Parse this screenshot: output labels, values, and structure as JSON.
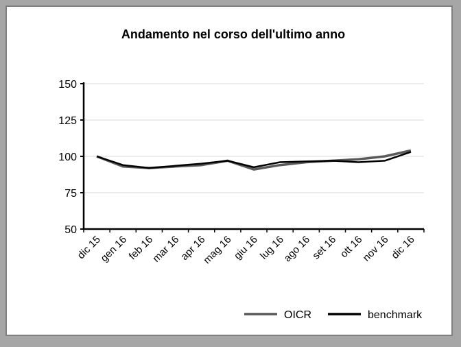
{
  "chart_data": {
    "type": "line",
    "title": "Andamento nel corso dell'ultimo anno",
    "xlabel": "",
    "ylabel": "",
    "categories": [
      "dic 15",
      "gen 16",
      "feb 16",
      "mar 16",
      "apr 16",
      "mag 16",
      "giu 16",
      "lug 16",
      "ago 16",
      "set 16",
      "ott 16",
      "nov 16",
      "dic 16"
    ],
    "ylim": [
      50,
      150
    ],
    "yticks": [
      50,
      75,
      100,
      125,
      150
    ],
    "grid": true,
    "legend_position": "bottom-right",
    "series": [
      {
        "name": "OICR",
        "color": "#595959",
        "values": [
          100,
          93,
          92,
          93,
          94,
          97,
          91,
          94,
          96,
          97,
          98,
          100,
          104
        ]
      },
      {
        "name": "benchmark",
        "color": "#000000",
        "values": [
          100,
          94,
          92,
          93.5,
          95,
          97,
          92.5,
          96,
          96.5,
          97,
          96,
          97,
          103
        ]
      }
    ]
  }
}
